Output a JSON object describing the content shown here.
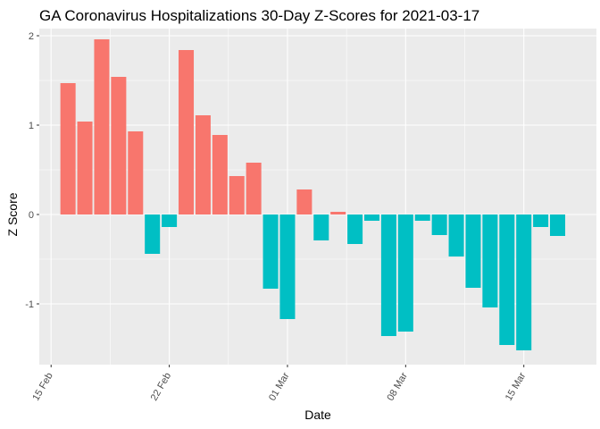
{
  "chart_data": {
    "type": "bar",
    "title": "GA Coronavirus Hospitalizations 30-Day Z-Scores for 2021-03-17",
    "xlabel": "Date",
    "ylabel": "Z Score",
    "x_ticks": [
      "15 Feb",
      "22 Feb",
      "01 Mar",
      "08 Mar",
      "15 Mar"
    ],
    "y_ticks": [
      -1,
      0,
      1,
      2
    ],
    "ylim": [
      -1.68,
      2.08
    ],
    "x_start_day": 14.3,
    "x_end_day": 47.3,
    "tick_days": [
      15,
      22,
      29,
      36,
      43
    ],
    "categories": [
      "2021-02-16",
      "2021-02-17",
      "2021-02-18",
      "2021-02-19",
      "2021-02-20",
      "2021-02-21",
      "2021-02-22",
      "2021-02-23",
      "2021-02-24",
      "2021-02-25",
      "2021-02-26",
      "2021-02-27",
      "2021-02-28",
      "2021-03-01",
      "2021-03-02",
      "2021-03-03",
      "2021-03-04",
      "2021-03-05",
      "2021-03-06",
      "2021-03-07",
      "2021-03-08",
      "2021-03-09",
      "2021-03-10",
      "2021-03-11",
      "2021-03-12",
      "2021-03-13",
      "2021-03-14",
      "2021-03-15",
      "2021-03-16",
      "2021-03-17"
    ],
    "values": [
      1.47,
      1.04,
      1.96,
      1.54,
      0.93,
      -0.44,
      -0.14,
      1.84,
      1.11,
      0.89,
      0.43,
      0.58,
      -0.83,
      -1.17,
      0.28,
      -0.29,
      0.03,
      -0.33,
      -0.07,
      -1.36,
      -1.31,
      -0.07,
      -0.23,
      -0.47,
      -0.82,
      -1.04,
      -1.46,
      -1.52,
      -0.14,
      -0.24
    ],
    "positive_color": "#F8766D",
    "negative_color": "#00BFC4",
    "panel_color": "#EBEBEB",
    "grid_color": "#FFFFFF"
  }
}
